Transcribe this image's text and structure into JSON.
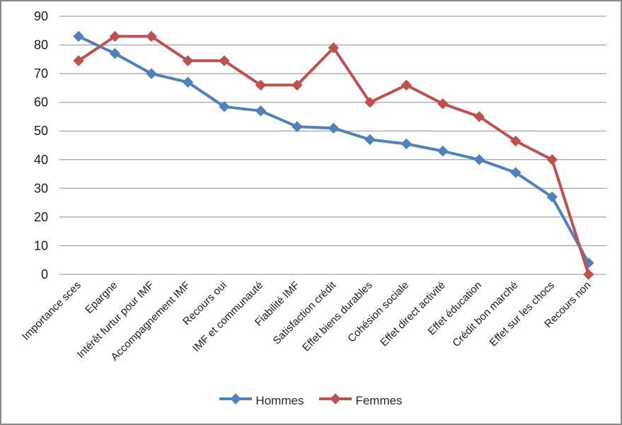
{
  "chart_data": {
    "type": "line",
    "categories": [
      "Importance sces",
      "Epargne",
      "Intérêt furtur pour IMF",
      "Accompagnement IMF",
      "Recours oui",
      "IMF et communauté",
      "Fiabilité IMF",
      "Satisfaction crédit",
      "Effet biens durables",
      "Cohésion sociale",
      "Effet direct activité",
      "Effet éducation",
      "Crédit bon marché",
      "Effet sur les chocs",
      "Recours non"
    ],
    "series": [
      {
        "name": "Hommes",
        "color": "#4F81BD",
        "values": [
          83,
          77,
          70,
          67,
          58.5,
          57,
          51.5,
          51,
          47,
          45.5,
          43,
          40,
          35.5,
          27,
          4
        ]
      },
      {
        "name": "Femmes",
        "color": "#C0504D",
        "values": [
          74.5,
          83,
          83,
          74.5,
          74.5,
          66,
          66,
          79,
          60,
          66,
          59.5,
          55,
          46.5,
          40,
          0
        ]
      }
    ],
    "title": "",
    "xlabel": "",
    "ylabel": "",
    "ylim": [
      0,
      90
    ],
    "yticks": [
      0,
      10,
      20,
      30,
      40,
      50,
      60,
      70,
      80,
      90
    ],
    "grid": true,
    "legend_position": "bottom",
    "marker": "diamond"
  },
  "styles": {
    "grid_color": "#8E8E8E",
    "axis_label_color": "#1a1a1a",
    "frame_border_color": "#898989",
    "background": "#FFFFFF"
  }
}
